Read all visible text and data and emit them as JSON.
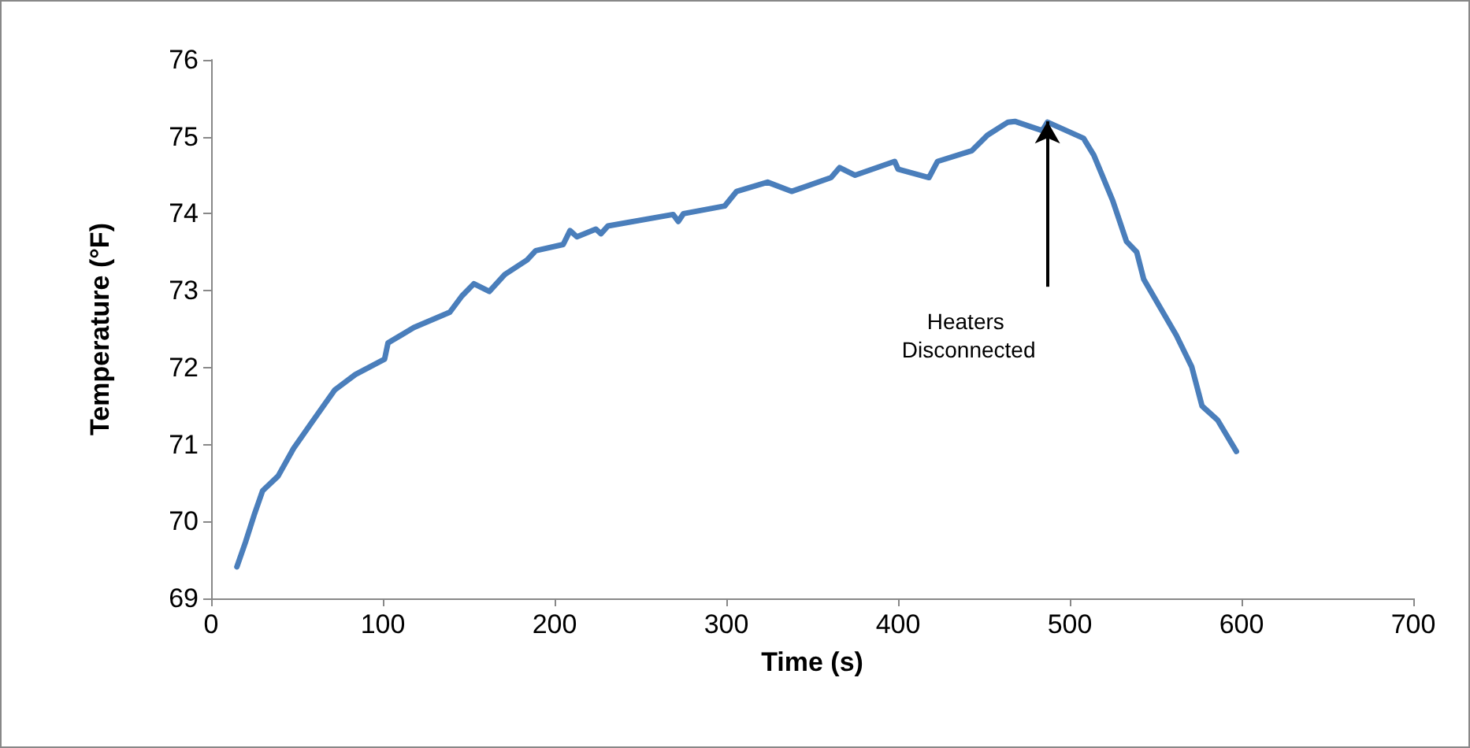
{
  "chart_data": {
    "type": "line",
    "xlabel": "Time (s)",
    "ylabel": "Temperature (°F)",
    "xlim": [
      0,
      700
    ],
    "xticks": [
      0,
      100,
      200,
      300,
      400,
      500,
      600,
      700
    ],
    "ylim": [
      69,
      76
    ],
    "yticks": [
      69,
      70,
      71,
      72,
      73,
      74,
      75,
      76
    ],
    "grid": false,
    "marker": "none",
    "line_style": "solid",
    "annotations": [
      {
        "text": "Heaters Disconnected",
        "x": 487,
        "y": 75.2
      }
    ],
    "series": [
      {
        "color": "#4a7ebb",
        "x": [
          15,
          20,
          25,
          30,
          39,
          48,
          59,
          72,
          84,
          101,
          103,
          118,
          139,
          146,
          153,
          162,
          171,
          184,
          189,
          205,
          209,
          213,
          224,
          227,
          231,
          269,
          272,
          275,
          299,
          306,
          324,
          338,
          361,
          366,
          375,
          398,
          400,
          418,
          423,
          443,
          452,
          464,
          468,
          484,
          487,
          508,
          514,
          525,
          533,
          539,
          543,
          562,
          571,
          577,
          586,
          597
        ],
        "values": [
          69.41,
          69.73,
          70.08,
          70.4,
          70.59,
          70.95,
          71.3,
          71.71,
          71.91,
          72.11,
          72.32,
          72.52,
          72.72,
          72.93,
          73.09,
          72.99,
          73.21,
          73.4,
          73.52,
          73.6,
          73.78,
          73.7,
          73.8,
          73.74,
          73.84,
          73.99,
          73.9,
          74.0,
          74.1,
          74.29,
          74.41,
          74.29,
          74.47,
          74.6,
          74.5,
          74.68,
          74.58,
          74.47,
          74.68,
          74.82,
          75.02,
          75.19,
          75.2,
          75.08,
          75.19,
          74.98,
          74.76,
          74.17,
          73.64,
          73.5,
          73.15,
          72.42,
          72.01,
          71.5,
          71.32,
          70.91
        ]
      }
    ]
  }
}
